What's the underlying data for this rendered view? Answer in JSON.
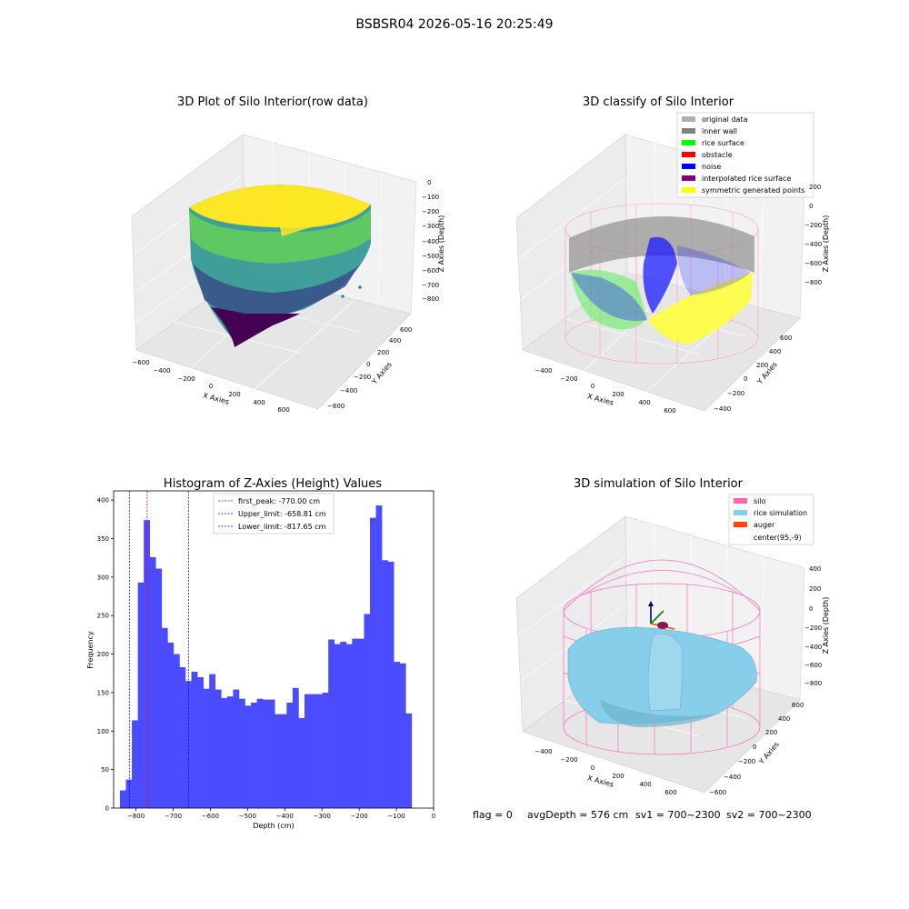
{
  "figure": {
    "title": "BSBSR04 2026-05-16 20:25:49",
    "footer": {
      "flag": "flag = 0",
      "avg_depth": "avgDepth = 576 cm",
      "sv1": "sv1 = 700~2300",
      "sv2": "sv2 = 700~2300"
    }
  },
  "chart_data": [
    {
      "type": "scatter",
      "title": "3D Plot of Silo Interior(row data)",
      "xlabel": "X Axies",
      "ylabel": "Y Axies",
      "zlabel": "Z Axies (Depth)",
      "x_ticks": [
        "−600",
        "−400",
        "−200",
        "0",
        "200",
        "400",
        "600"
      ],
      "y_ticks": [
        "−600",
        "−400",
        "−200",
        "0",
        "200",
        "400",
        "600"
      ],
      "z_ticks": [
        "0",
        "−100",
        "−200",
        "−300",
        "−400",
        "−500",
        "−600",
        "−700",
        "−800"
      ],
      "xlim": [
        -600,
        700
      ],
      "ylim": [
        -600,
        700
      ],
      "zlim": [
        -850,
        0
      ],
      "colormap": "viridis",
      "colors": [
        "#440154",
        "#3b528b",
        "#21918c",
        "#5ec962",
        "#fde725"
      ]
    },
    {
      "type": "scatter",
      "title": "3D classify of Silo Interior",
      "xlabel": "X Axies",
      "ylabel": "Y Axies",
      "zlabel": "Z Axies (Depth)",
      "x_ticks": [
        "−400",
        "−200",
        "0",
        "200",
        "400",
        "600"
      ],
      "y_ticks": [
        "−400",
        "−200",
        "0",
        "200",
        "400",
        "600"
      ],
      "z_ticks": [
        "200",
        "0",
        "−200",
        "−400",
        "−600",
        "−800"
      ],
      "legend_position": "top-right",
      "legend": [
        {
          "label": "original data",
          "color": "#b0b0b0"
        },
        {
          "label": "inner wall",
          "color": "#808080"
        },
        {
          "label": "rice surface",
          "color": "#00ff00"
        },
        {
          "label": "obstacle",
          "color": "#ff0000"
        },
        {
          "label": "noise",
          "color": "#0000ff"
        },
        {
          "label": "interpolated rice surface",
          "color": "#800080"
        },
        {
          "label": "symmetric generated points",
          "color": "#ffff00"
        }
      ]
    },
    {
      "type": "bar",
      "title": "Histogram of Z-Axies (Height) Values",
      "xlabel": "Depth (cm)",
      "ylabel": "Frequency",
      "xlim": [
        -860,
        0
      ],
      "ylim": [
        0,
        412
      ],
      "x_ticks": [
        -800,
        -700,
        -600,
        -500,
        -400,
        -300,
        -200,
        -100,
        0
      ],
      "x_tick_labels": [
        "−800",
        "−700",
        "−600",
        "−500",
        "−400",
        "−300",
        "−200",
        "−100",
        "0"
      ],
      "y_ticks": [
        0,
        50,
        100,
        150,
        200,
        250,
        300,
        350,
        400
      ],
      "bar_color": "#4b4bff",
      "bin_start": -843,
      "bin_width": 16,
      "values": [
        23,
        37,
        114,
        293,
        374,
        326,
        311,
        234,
        215,
        200,
        183,
        165,
        177,
        170,
        155,
        174,
        154,
        143,
        145,
        154,
        142,
        133,
        137,
        142,
        141,
        141,
        122,
        122,
        137,
        156,
        117,
        148,
        148,
        148,
        150,
        219,
        213,
        216,
        213,
        220,
        220,
        252,
        377,
        393,
        322,
        320,
        190,
        188,
        123
      ],
      "vlines": [
        {
          "label": "first_peak: -770.00 cm",
          "x": -770.0,
          "color": "#ff0000"
        },
        {
          "label": "Upper_limit: -658.81 cm",
          "x": -658.81,
          "color": "#0000cc"
        },
        {
          "label": "Lower_limit: -817.65 cm",
          "x": -817.65,
          "color": "#0000cc"
        }
      ],
      "legend_position": "top-center"
    },
    {
      "type": "scatter",
      "title": "3D simulation of Silo Interior",
      "xlabel": "X Axies",
      "ylabel": "Y Axies",
      "zlabel": "Z Axies (Depth)",
      "x_ticks": [
        "−400",
        "−200",
        "0",
        "200",
        "400",
        "600"
      ],
      "y_ticks": [
        "−600",
        "−400",
        "−200",
        "0",
        "200",
        "400",
        "600"
      ],
      "z_ticks": [
        "400",
        "200",
        "0",
        "−200",
        "−400",
        "−600",
        "−800"
      ],
      "legend_position": "top-right",
      "legend": [
        {
          "label": "silo",
          "color": "#ff69b4"
        },
        {
          "label": "rice simulation",
          "color": "#87ceeb"
        },
        {
          "label": "auger",
          "color": "#ff4500"
        },
        {
          "label": "center(95,-9)",
          "color": "#ffffff"
        }
      ]
    }
  ]
}
